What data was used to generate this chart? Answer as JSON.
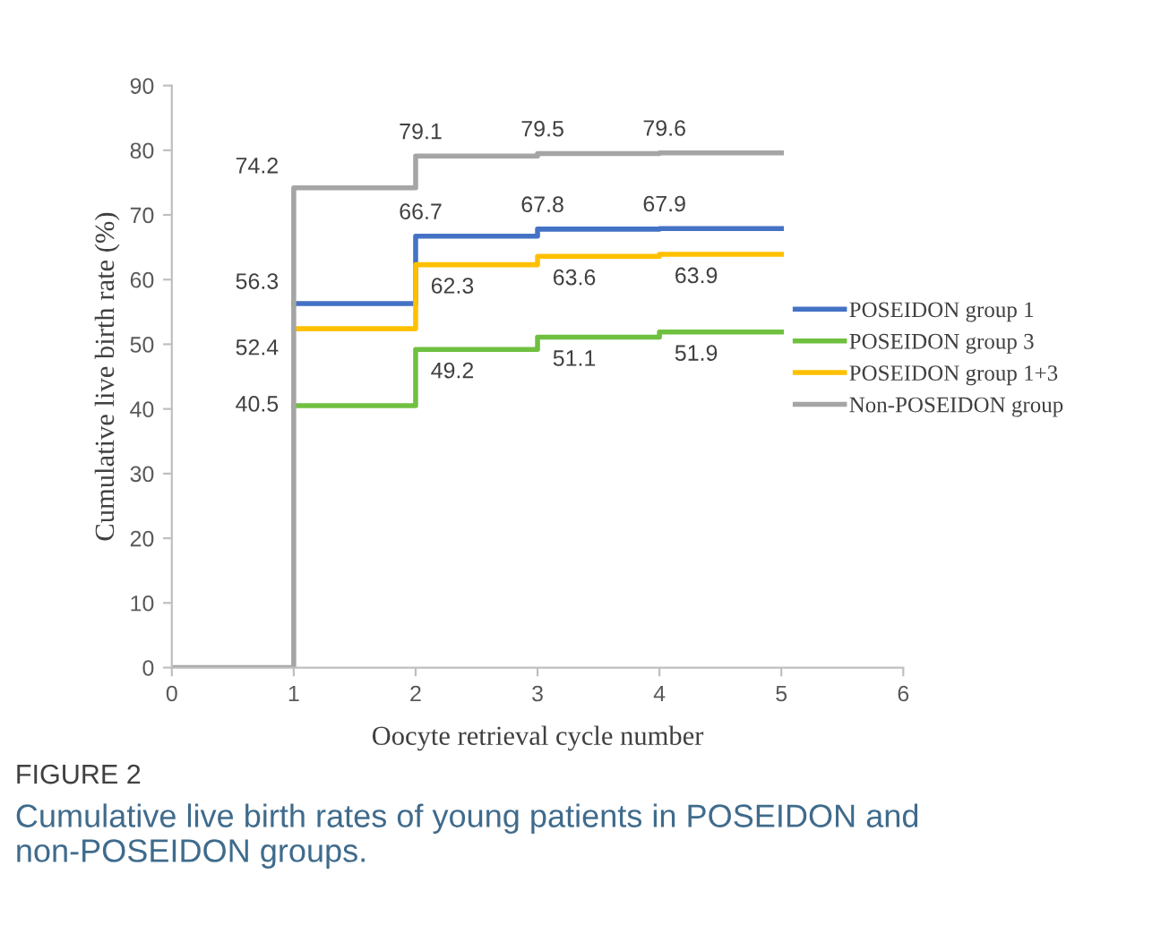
{
  "chart_data": {
    "type": "step",
    "xlabel": "Oocyte retrieval cycle number",
    "ylabel": "Cumulative live birth rate (%)",
    "xlim": [
      0,
      6
    ],
    "xticks": [
      0,
      1,
      2,
      3,
      4,
      5,
      6
    ],
    "ylim": [
      0,
      90
    ],
    "yticks": [
      0,
      10,
      20,
      30,
      40,
      50,
      60,
      70,
      80,
      90
    ],
    "grid": false,
    "legend": "right",
    "marker": "none",
    "line_style": "solid",
    "series": [
      {
        "name": "POSEIDON group 1",
        "color": "#4472c4",
        "x": [
          1,
          2,
          3,
          4,
          5
        ],
        "values": [
          56.3,
          66.7,
          67.8,
          67.9,
          67.9
        ],
        "value_labels": [
          "56.3",
          "66.7",
          "67.8",
          "67.9",
          null
        ]
      },
      {
        "name": "POSEIDON group 3",
        "color": "#70c040",
        "x": [
          1,
          2,
          3,
          4,
          5
        ],
        "values": [
          40.5,
          49.2,
          51.1,
          51.9,
          51.9
        ],
        "value_labels": [
          "40.5",
          "49.2",
          "51.1",
          "51.9",
          null
        ]
      },
      {
        "name": "POSEIDON group 1+3",
        "color": "#ffc000",
        "x": [
          1,
          2,
          3,
          4,
          5
        ],
        "values": [
          52.4,
          62.3,
          63.6,
          63.9,
          63.9
        ],
        "value_labels": [
          "52.4",
          "62.3",
          "63.6",
          "63.9",
          null
        ]
      },
      {
        "name": "Non-POSEIDON group",
        "color": "#a5a5a5",
        "x": [
          0,
          1,
          2,
          3,
          4,
          5
        ],
        "values": [
          0,
          74.2,
          79.1,
          79.5,
          79.6,
          79.6
        ],
        "value_labels": [
          null,
          "74.2",
          "79.1",
          "79.5",
          "79.6",
          null
        ]
      }
    ],
    "annotations": [
      "FIGURE 2",
      "Cumulative live birth rates of young patients in POSEIDON and non-POSEIDON groups."
    ]
  }
}
